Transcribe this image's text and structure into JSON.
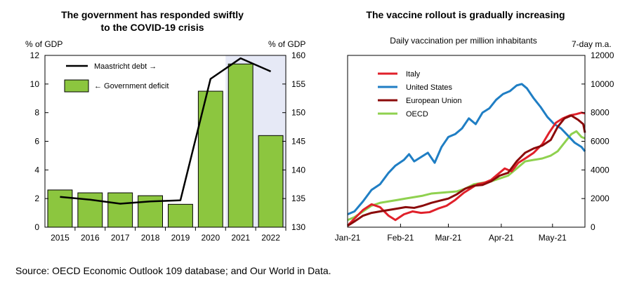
{
  "source": "Source: OECD Economic Outlook 109 database; and Our World in Data.",
  "colors": {
    "bar_fill": "#8cc63f",
    "bar_edge": "#000000",
    "projection_shade": "#e6e9f6",
    "debt_line": "#000000",
    "italy": "#e0202a",
    "united_states": "#1f7ec4",
    "european_union": "#8b0a0a",
    "oecd": "#8fd14f"
  },
  "chart_data": [
    {
      "type": "bar",
      "title": "The government has responded swiftly to the COVID-19 crisis",
      "title_lines": [
        "The government has responded swiftly",
        "to the COVID-19 crisis"
      ],
      "left_axis_label": "% of GDP",
      "right_axis_label": "% of GDP",
      "categories": [
        "2015",
        "2016",
        "2017",
        "2018",
        "2019",
        "2020",
        "2021",
        "2022"
      ],
      "ylim_left": [
        0,
        12
      ],
      "yticks_left": [
        "0",
        "2",
        "4",
        "6",
        "8",
        "10",
        "12"
      ],
      "ylim_right": [
        130,
        160
      ],
      "yticks_right": [
        "130",
        "135",
        "140",
        "145",
        "150",
        "155",
        "160"
      ],
      "projection_shaded_from": "2021",
      "series": [
        {
          "name": "← Government deficit",
          "axis": "left",
          "kind": "bar",
          "values": [
            2.6,
            2.4,
            2.4,
            2.2,
            1.6,
            9.5,
            11.4,
            6.4
          ]
        },
        {
          "name": "Maastricht debt →",
          "axis": "right",
          "kind": "line",
          "values": [
            135.3,
            134.8,
            134.1,
            134.5,
            134.7,
            155.9,
            159.5,
            157.2
          ]
        }
      ],
      "legend": "top-left",
      "grid": false
    },
    {
      "type": "line",
      "title": "The vaccine rollout is gradually increasing",
      "subtitle": "Daily vaccination per million inhabitants",
      "right_axis_label": "7-day m.a.",
      "ylim": [
        0,
        12000
      ],
      "yticks": [
        "0",
        "2000",
        "4000",
        "6000",
        "8000",
        "10000",
        "12000"
      ],
      "x_ticks": [
        {
          "date": "2021-01-01",
          "label": "Jan-21"
        },
        {
          "date": "2021-02-01",
          "label": "Feb-21"
        },
        {
          "date": "2021-03-01",
          "label": "Mar-21"
        },
        {
          "date": "2021-04-01",
          "label": "Apr-21"
        },
        {
          "date": "2021-05-01",
          "label": "May-21"
        }
      ],
      "legend": "top-left",
      "grid": false,
      "series": [
        {
          "name": "Italy",
          "color_key": "italy",
          "points": [
            [
              "2021-01-01",
              100
            ],
            [
              "2021-01-05",
              600
            ],
            [
              "2021-01-10",
              1200
            ],
            [
              "2021-01-15",
              1600
            ],
            [
              "2021-01-20",
              1400
            ],
            [
              "2021-01-25",
              800
            ],
            [
              "2021-01-29",
              500
            ],
            [
              "2021-02-03",
              900
            ],
            [
              "2021-02-08",
              1100
            ],
            [
              "2021-02-13",
              1000
            ],
            [
              "2021-02-18",
              1050
            ],
            [
              "2021-02-23",
              1300
            ],
            [
              "2021-02-28",
              1500
            ],
            [
              "2021-03-05",
              1900
            ],
            [
              "2021-03-10",
              2400
            ],
            [
              "2021-03-14",
              2700
            ],
            [
              "2021-03-18",
              3000
            ],
            [
              "2021-03-22",
              3100
            ],
            [
              "2021-03-26",
              3300
            ],
            [
              "2021-03-30",
              3700
            ],
            [
              "2021-04-03",
              4100
            ],
            [
              "2021-04-07",
              3900
            ],
            [
              "2021-04-11",
              4500
            ],
            [
              "2021-04-15",
              4800
            ],
            [
              "2021-04-20",
              5200
            ],
            [
              "2021-04-25",
              5800
            ],
            [
              "2021-04-29",
              6600
            ],
            [
              "2021-05-03",
              7300
            ],
            [
              "2021-05-07",
              7600
            ],
            [
              "2021-05-11",
              7800
            ],
            [
              "2021-05-15",
              7900
            ],
            [
              "2021-05-18",
              8000
            ],
            [
              "2021-05-20",
              7950
            ]
          ]
        },
        {
          "name": "United States",
          "color_key": "united_states",
          "points": [
            [
              "2021-01-01",
              900
            ],
            [
              "2021-01-05",
              1100
            ],
            [
              "2021-01-10",
              1800
            ],
            [
              "2021-01-15",
              2600
            ],
            [
              "2021-01-20",
              3000
            ],
            [
              "2021-01-25",
              3800
            ],
            [
              "2021-01-29",
              4300
            ],
            [
              "2021-02-03",
              4700
            ],
            [
              "2021-02-06",
              5100
            ],
            [
              "2021-02-09",
              4600
            ],
            [
              "2021-02-13",
              4900
            ],
            [
              "2021-02-17",
              5200
            ],
            [
              "2021-02-21",
              4500
            ],
            [
              "2021-02-25",
              5600
            ],
            [
              "2021-03-01",
              6300
            ],
            [
              "2021-03-05",
              6500
            ],
            [
              "2021-03-09",
              6900
            ],
            [
              "2021-03-13",
              7600
            ],
            [
              "2021-03-17",
              7200
            ],
            [
              "2021-03-21",
              8000
            ],
            [
              "2021-03-25",
              8300
            ],
            [
              "2021-03-29",
              8900
            ],
            [
              "2021-04-02",
              9300
            ],
            [
              "2021-04-06",
              9500
            ],
            [
              "2021-04-10",
              9900
            ],
            [
              "2021-04-13",
              10000
            ],
            [
              "2021-04-16",
              9700
            ],
            [
              "2021-04-20",
              9000
            ],
            [
              "2021-04-24",
              8400
            ],
            [
              "2021-04-28",
              7700
            ],
            [
              "2021-05-02",
              7200
            ],
            [
              "2021-05-06",
              6900
            ],
            [
              "2021-05-10",
              6400
            ],
            [
              "2021-05-14",
              5900
            ],
            [
              "2021-05-18",
              5600
            ],
            [
              "2021-05-20",
              5300
            ]
          ]
        },
        {
          "name": "European Union",
          "color_key": "european_union",
          "points": [
            [
              "2021-01-01",
              100
            ],
            [
              "2021-01-05",
              400
            ],
            [
              "2021-01-10",
              800
            ],
            [
              "2021-01-15",
              1000
            ],
            [
              "2021-01-20",
              1100
            ],
            [
              "2021-01-25",
              1200
            ],
            [
              "2021-01-30",
              1300
            ],
            [
              "2021-02-04",
              1400
            ],
            [
              "2021-02-09",
              1350
            ],
            [
              "2021-02-14",
              1500
            ],
            [
              "2021-02-19",
              1700
            ],
            [
              "2021-02-24",
              1850
            ],
            [
              "2021-03-01",
              2000
            ],
            [
              "2021-03-06",
              2300
            ],
            [
              "2021-03-11",
              2700
            ],
            [
              "2021-03-16",
              2900
            ],
            [
              "2021-03-21",
              2950
            ],
            [
              "2021-03-26",
              3200
            ],
            [
              "2021-03-31",
              3600
            ],
            [
              "2021-04-05",
              3800
            ],
            [
              "2021-04-10",
              4600
            ],
            [
              "2021-04-15",
              5200
            ],
            [
              "2021-04-20",
              5500
            ],
            [
              "2021-04-25",
              5700
            ],
            [
              "2021-04-30",
              6100
            ],
            [
              "2021-05-04",
              7000
            ],
            [
              "2021-05-08",
              7600
            ],
            [
              "2021-05-12",
              7800
            ],
            [
              "2021-05-16",
              7500
            ],
            [
              "2021-05-19",
              7200
            ],
            [
              "2021-05-20",
              6600
            ]
          ]
        },
        {
          "name": "OECD",
          "color_key": "oecd",
          "points": [
            [
              "2021-01-01",
              500
            ],
            [
              "2021-01-05",
              700
            ],
            [
              "2021-01-10",
              1100
            ],
            [
              "2021-01-15",
              1500
            ],
            [
              "2021-01-20",
              1700
            ],
            [
              "2021-01-25",
              1800
            ],
            [
              "2021-01-30",
              1900
            ],
            [
              "2021-02-04",
              2000
            ],
            [
              "2021-02-09",
              2100
            ],
            [
              "2021-02-14",
              2200
            ],
            [
              "2021-02-19",
              2350
            ],
            [
              "2021-02-24",
              2400
            ],
            [
              "2021-03-01",
              2450
            ],
            [
              "2021-03-06",
              2500
            ],
            [
              "2021-03-11",
              2700
            ],
            [
              "2021-03-16",
              3000
            ],
            [
              "2021-03-21",
              3100
            ],
            [
              "2021-03-26",
              3200
            ],
            [
              "2021-03-31",
              3400
            ],
            [
              "2021-04-05",
              3600
            ],
            [
              "2021-04-10",
              4100
            ],
            [
              "2021-04-15",
              4600
            ],
            [
              "2021-04-20",
              4700
            ],
            [
              "2021-04-25",
              4800
            ],
            [
              "2021-04-30",
              5000
            ],
            [
              "2021-05-04",
              5300
            ],
            [
              "2021-05-08",
              5900
            ],
            [
              "2021-05-12",
              6500
            ],
            [
              "2021-05-15",
              6700
            ],
            [
              "2021-05-18",
              6300
            ],
            [
              "2021-05-20",
              6200
            ]
          ]
        }
      ]
    }
  ]
}
